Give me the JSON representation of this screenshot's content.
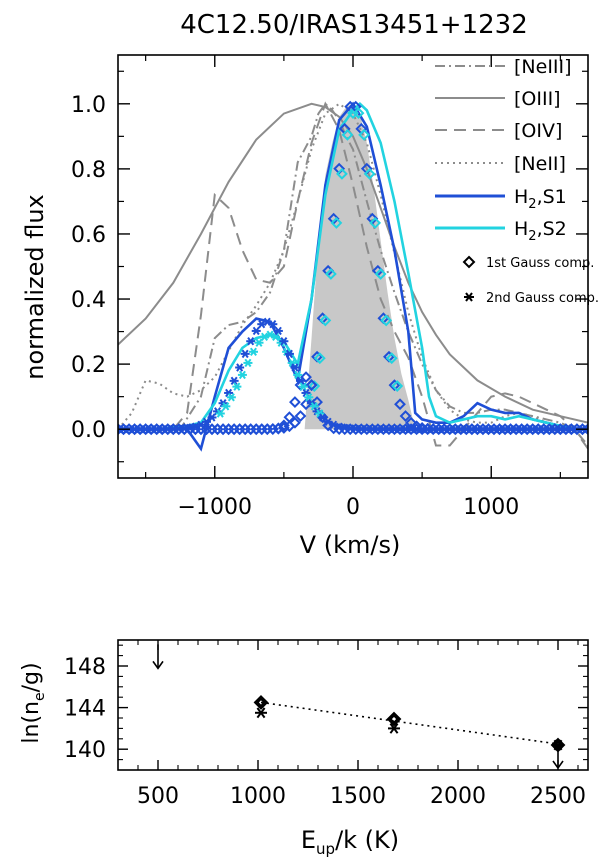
{
  "chart_data": [
    {
      "type": "line",
      "title": "4C12.50/IRAS13451+1232",
      "xlabel": "V (km/s)",
      "ylabel": "normalized flux",
      "xlim": [
        -1700,
        1700
      ],
      "ylim": [
        -0.15,
        1.15
      ],
      "xticks": [
        -1000,
        0,
        1000
      ],
      "xtick_labels": [
        "−1000",
        "0",
        "1000"
      ],
      "yticks": [
        0.0,
        0.2,
        0.4,
        0.6,
        0.8,
        1.0
      ],
      "ytick_labels": [
        "0.0",
        "0.2",
        "0.4",
        "0.6",
        "0.8",
        "1.0"
      ],
      "legend": {
        "position": "top-right",
        "entries": [
          {
            "label": "[NeIII]",
            "style": "dash-dot",
            "color": "#8c8c8c"
          },
          {
            "label": "[OIII]",
            "style": "solid",
            "color": "#8c8c8c"
          },
          {
            "label": "[OIV]",
            "style": "dashed",
            "color": "#8c8c8c"
          },
          {
            "label": "[NeII]",
            "style": "dotted",
            "color": "#8c8c8c"
          },
          {
            "label": "H",
            "sub": "2",
            "suffix": ",S1",
            "style": "solid",
            "color": "#1f4fd6"
          },
          {
            "label": "H",
            "sub": "2",
            "suffix": ",S2",
            "style": "solid",
            "color": "#22d3e0"
          },
          {
            "label": "1st Gauss comp.",
            "style": "diamond",
            "color": "#000000"
          },
          {
            "label": "2nd Gauss comp.",
            "style": "asterisk",
            "color": "#000000"
          }
        ]
      },
      "series": [
        {
          "name": "[OIII]",
          "style": "solid",
          "color": "#8c8c8c",
          "x": [
            -1700,
            -1500,
            -1300,
            -1100,
            -900,
            -700,
            -500,
            -300,
            -200,
            -100,
            0,
            100,
            200,
            300,
            400,
            500,
            600,
            700,
            900,
            1100,
            1300,
            1500,
            1700
          ],
          "y": [
            0.26,
            0.34,
            0.45,
            0.6,
            0.76,
            0.89,
            0.97,
            1.0,
            0.99,
            0.96,
            0.9,
            0.8,
            0.68,
            0.56,
            0.45,
            0.36,
            0.29,
            0.23,
            0.15,
            0.1,
            0.06,
            0.04,
            0.02
          ]
        },
        {
          "name": "[NeIII]",
          "style": "dash-dot",
          "color": "#8c8c8c",
          "x": [
            -1700,
            -1400,
            -1250,
            -1100,
            -1000,
            -900,
            -800,
            -700,
            -600,
            -500,
            -400,
            -300,
            -250,
            -200,
            -150,
            -100,
            -50,
            0,
            50,
            100,
            200,
            300,
            400,
            500,
            600,
            700,
            800,
            900,
            1000,
            1100,
            1200,
            1300,
            1400,
            1500,
            1600,
            1700
          ],
          "y": [
            0.0,
            0.0,
            0.0,
            0.1,
            0.28,
            0.32,
            0.33,
            0.36,
            0.42,
            0.55,
            0.82,
            0.9,
            0.97,
            1.0,
            0.98,
            0.95,
            0.9,
            0.86,
            0.78,
            0.7,
            0.55,
            0.42,
            0.3,
            0.2,
            0.12,
            0.07,
            0.05,
            0.05,
            0.06,
            0.06,
            0.05,
            0.04,
            0.03,
            0.02,
            0.0,
            -0.05
          ]
        },
        {
          "name": "[OIV]",
          "style": "dashed",
          "color": "#8c8c8c",
          "x": [
            -1700,
            -1500,
            -1300,
            -1200,
            -1100,
            -1000,
            -900,
            -800,
            -700,
            -600,
            -500,
            -400,
            -300,
            -200,
            -100,
            0,
            100,
            200,
            300,
            400,
            500,
            600,
            700,
            800,
            900,
            1000,
            1100,
            1200,
            1300,
            1400,
            1500,
            1600,
            1700
          ],
          "y": [
            0.0,
            0.0,
            0.0,
            0.05,
            0.35,
            0.72,
            0.68,
            0.55,
            0.46,
            0.45,
            0.5,
            0.7,
            0.88,
            1.0,
            0.92,
            0.75,
            0.56,
            0.4,
            0.3,
            0.22,
            0.1,
            -0.05,
            -0.05,
            0.0,
            0.05,
            0.1,
            0.11,
            0.1,
            0.08,
            0.06,
            0.04,
            0.0,
            -0.06
          ]
        },
        {
          "name": "[NeII]",
          "style": "dotted",
          "color": "#8c8c8c",
          "x": [
            -1700,
            -1600,
            -1500,
            -1400,
            -1300,
            -1200,
            -1100,
            -1000,
            -900,
            -800,
            -700,
            -600,
            -500,
            -400,
            -300,
            -200,
            -100,
            0,
            100,
            200,
            300,
            400,
            500,
            600,
            700,
            800,
            900,
            1000,
            1100,
            1200,
            1300,
            1400,
            1500,
            1600,
            1700
          ],
          "y": [
            0.0,
            0.05,
            0.15,
            0.14,
            0.11,
            0.1,
            0.12,
            0.16,
            0.24,
            0.32,
            0.38,
            0.45,
            0.55,
            0.7,
            0.86,
            0.97,
            1.0,
            0.97,
            0.88,
            0.72,
            0.54,
            0.36,
            0.22,
            0.12,
            0.06,
            0.03,
            0.02,
            0.02,
            0.04,
            0.05,
            0.04,
            0.02,
            0.0,
            0.0,
            0.0
          ]
        },
        {
          "name": "H2,S1",
          "style": "solid",
          "color": "#1f4fd6",
          "x": [
            -1700,
            -1300,
            -1200,
            -1100,
            -1000,
            -900,
            -800,
            -700,
            -600,
            -500,
            -400,
            -300,
            -200,
            -100,
            0,
            100,
            200,
            300,
            400,
            450,
            500,
            600,
            700,
            800,
            900,
            1000,
            1100,
            1200,
            1300,
            1400,
            1500,
            1600,
            1700
          ],
          "y": [
            0.0,
            0.0,
            0.0,
            -0.06,
            0.1,
            0.25,
            0.3,
            0.34,
            0.33,
            0.25,
            0.15,
            0.4,
            0.75,
            0.95,
            1.0,
            0.93,
            0.75,
            0.55,
            0.3,
            0.05,
            0.03,
            0.02,
            0.02,
            0.04,
            0.08,
            0.06,
            0.05,
            0.05,
            0.03,
            0.02,
            0.01,
            0.0,
            0.0
          ]
        },
        {
          "name": "H2,S2",
          "style": "solid",
          "color": "#22d3e0",
          "x": [
            -1700,
            -1400,
            -1200,
            -1100,
            -1000,
            -900,
            -800,
            -700,
            -600,
            -500,
            -400,
            -300,
            -200,
            -100,
            0,
            50,
            100,
            200,
            300,
            400,
            500,
            550,
            600,
            700,
            800,
            900,
            1000,
            1100,
            1200,
            1300,
            1400,
            1500,
            1600,
            1700
          ],
          "y": [
            0.0,
            0.0,
            0.01,
            0.02,
            0.08,
            0.18,
            0.25,
            0.28,
            0.29,
            0.27,
            0.2,
            0.4,
            0.72,
            0.92,
            0.98,
            1.0,
            0.98,
            0.88,
            0.7,
            0.48,
            0.25,
            0.1,
            0.04,
            0.02,
            0.03,
            0.04,
            0.04,
            0.03,
            0.04,
            0.03,
            0.02,
            0.01,
            0.0,
            0.0
          ]
        }
      ],
      "gauss_components": [
        {
          "name": "1st Gauss comp.",
          "marker": "diamond",
          "x0": 0,
          "sigma": 150,
          "amp": 1.0
        },
        {
          "name": "1st Gauss comp.",
          "marker": "diamond",
          "x0": -340,
          "sigma": 70,
          "amp": 0.16
        },
        {
          "name": "2nd Gauss comp.",
          "marker": "asterisk",
          "x0": -620,
          "sigma": 190,
          "amp": 0.33
        }
      ],
      "shaded_fill": {
        "x": [
          -350,
          -300,
          -250,
          -200,
          -150,
          -100,
          -50,
          0,
          50,
          100,
          150,
          200,
          250,
          300,
          350,
          400,
          450
        ],
        "y": [
          0.0,
          0.28,
          0.58,
          0.78,
          0.88,
          0.96,
          0.99,
          1.0,
          0.97,
          0.88,
          0.74,
          0.58,
          0.42,
          0.28,
          0.17,
          0.09,
          0.0
        ],
        "color": "#c8c8c8"
      }
    },
    {
      "type": "scatter",
      "xlabel": "E",
      "xlabel_sub": "up",
      "xlabel_suffix": "/k (K)",
      "ylabel": "ln(n",
      "ylabel_sub": "e",
      "ylabel_suffix": "/g)",
      "xlim": [
        300,
        2650
      ],
      "ylim": [
        138,
        150.5
      ],
      "xticks": [
        500,
        1000,
        1500,
        2000,
        2500
      ],
      "xtick_labels": [
        "500",
        "1000",
        "1500",
        "2000",
        "2500"
      ],
      "yticks": [
        140,
        144,
        148
      ],
      "ytick_labels": [
        "140",
        "144",
        "148"
      ],
      "series": [
        {
          "name": "1st Gauss comp.",
          "marker": "diamond",
          "x": [
            1015,
            1680,
            2500
          ],
          "y": [
            144.5,
            142.9,
            140.4
          ]
        },
        {
          "name": "2nd Gauss comp.",
          "marker": "asterisk",
          "x": [
            1015,
            1680,
            2500
          ],
          "y": [
            143.5,
            142.0,
            140.4
          ]
        }
      ],
      "fit_line": {
        "style": "dotted",
        "x": [
          1015,
          2500
        ],
        "y": [
          144.5,
          140.5
        ]
      },
      "upper_limits": [
        {
          "x": 500,
          "y": 149.5
        },
        {
          "x": 2500,
          "y": 140.4
        }
      ]
    }
  ]
}
